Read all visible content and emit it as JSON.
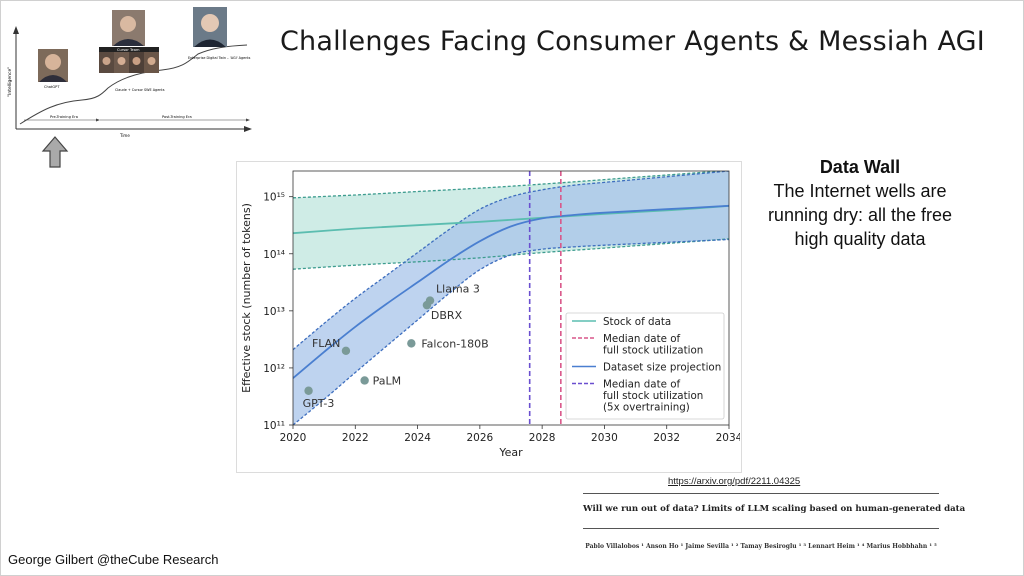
{
  "slide": {
    "title": "Challenges Facing Consumer Agents & Messiah AGI",
    "credit": "George Gilbert @theCube Research"
  },
  "mini_timeline": {
    "y_label": "\"Intelligence\"",
    "x_label": "Time",
    "eras": [
      "Pre-Training Era",
      "Post-Training Era"
    ],
    "labels": [
      "ChatGPT",
      "Claude + Cursor SWE Agents",
      "Enterprise Digital Twin – 'AGI' Agents"
    ],
    "team_label": "Cursor Team"
  },
  "sidebar": {
    "heading": "Data Wall",
    "body": "The Internet wells are running dry: all the free high quality data"
  },
  "reference": {
    "url": "https://arxiv.org/pdf/2211.04325",
    "paper_title": "Will we run out of data? Limits of LLM scaling based on human-generated data",
    "authors": "Pablo Villalobos ¹   Anson Ho ¹   Jaime Sevilla ¹ ²   Tamay Besiroglu ¹ ³   Lennart Heim ¹ ⁴   Marius Hobbhahn ¹ ⁵"
  },
  "colors": {
    "stock": "#5bbdb0",
    "stock_fill": "#bfe6de",
    "projection": "#4a7fd0",
    "projection_fill": "#a8c4ea",
    "median_stock": "#d9578a",
    "median_overtrain": "#6a4fcf",
    "points": "#7a9a98"
  },
  "chart_data": {
    "type": "line",
    "xlabel": "Year",
    "ylabel": "Effective stock (number of tokens)",
    "xlim": [
      2020,
      2034
    ],
    "x_ticks": [
      "2020",
      "2022",
      "2024",
      "2026",
      "2028",
      "2030",
      "2032",
      "2034"
    ],
    "y_scale": "log",
    "ylim_log10": [
      11,
      15.45
    ],
    "y_ticks": [
      "10¹¹",
      "10¹²",
      "10¹³",
      "10¹⁴",
      "10¹⁵"
    ],
    "legend_position": "lower-right",
    "legend": [
      "Stock of data",
      "Median date of full stock utilization",
      "Dataset size projection",
      "Median date of full stock utilization (5x overtraining)"
    ],
    "series": [
      {
        "name": "Stock of data",
        "x": [
          2020,
          2022,
          2024,
          2026,
          2028,
          2030,
          2032,
          2034
        ],
        "log10_median": [
          14.36,
          14.44,
          14.5,
          14.56,
          14.63,
          14.7,
          14.76,
          14.84
        ],
        "log10_low": [
          13.73,
          13.8,
          13.86,
          13.93,
          14.02,
          14.1,
          14.18,
          14.26
        ],
        "log10_high": [
          14.98,
          15.03,
          15.09,
          15.15,
          15.22,
          15.3,
          15.38,
          15.46
        ]
      },
      {
        "name": "Dataset size projection",
        "x": [
          2020,
          2021,
          2022,
          2023,
          2024,
          2025,
          2026,
          2027,
          2028,
          2029,
          2030,
          2032,
          2034
        ],
        "log10_median": [
          11.82,
          12.28,
          12.72,
          13.12,
          13.5,
          13.88,
          14.22,
          14.48,
          14.62,
          14.68,
          14.72,
          14.78,
          14.84
        ],
        "log10_low": [
          11.0,
          11.45,
          11.92,
          12.38,
          12.84,
          13.3,
          13.72,
          13.98,
          14.08,
          14.12,
          14.15,
          14.2,
          14.25
        ],
        "log10_high": [
          12.32,
          12.78,
          13.22,
          13.62,
          14.02,
          14.42,
          14.78,
          15.0,
          15.12,
          15.2,
          15.25,
          15.35,
          15.45
        ]
      }
    ],
    "median_dates": [
      {
        "name": "Median date of full stock utilization",
        "x": 2028.6
      },
      {
        "name": "Median date of full stock utilization (5x overtraining)",
        "x": 2027.6
      }
    ],
    "points": [
      {
        "label": "GPT-3",
        "x": 2020.5,
        "log10_y": 11.6
      },
      {
        "label": "FLAN",
        "x": 2021.7,
        "log10_y": 12.3
      },
      {
        "label": "PaLM",
        "x": 2022.3,
        "log10_y": 11.78
      },
      {
        "label": "Falcon-180B",
        "x": 2023.8,
        "log10_y": 12.43
      },
      {
        "label": "DBRX",
        "x": 2024.3,
        "log10_y": 13.1
      },
      {
        "label": "Llama 3",
        "x": 2024.4,
        "log10_y": 13.18
      }
    ]
  }
}
